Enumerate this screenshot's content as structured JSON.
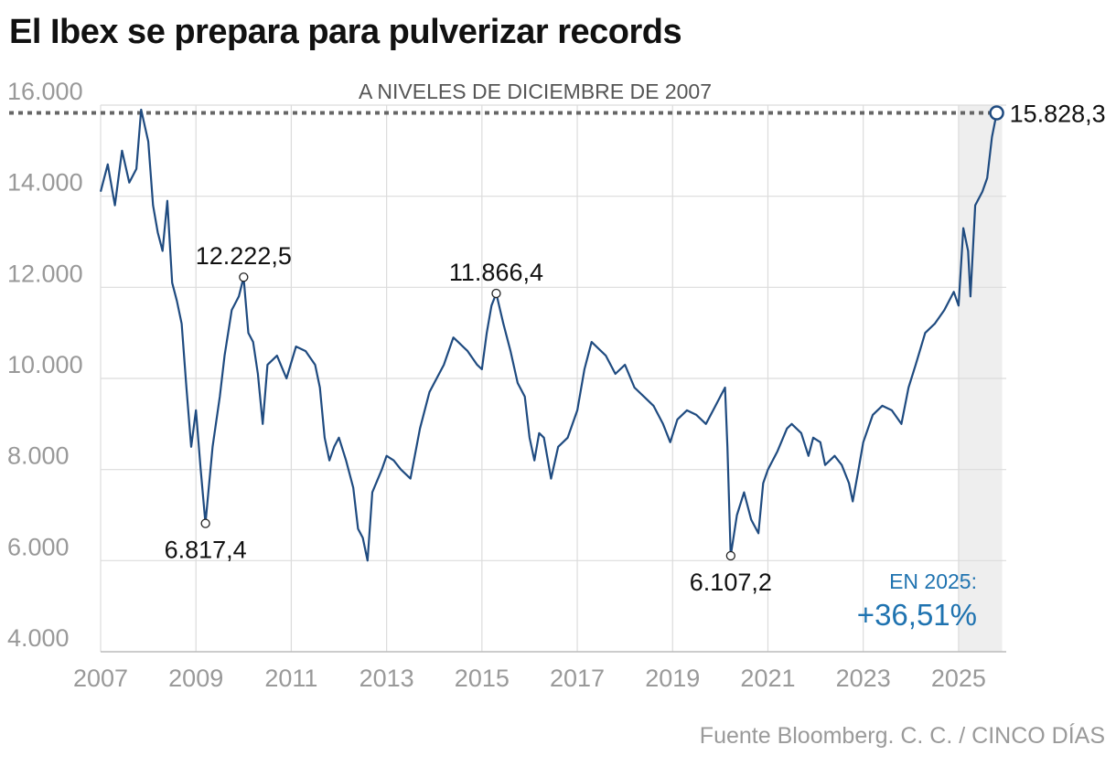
{
  "title": "El Ibex se prepara para pulverizar records",
  "source": "Fuente Bloomberg. C. C. / CINCO DÍAS",
  "colors": {
    "line": "#1f4b80",
    "grid": "#dcdcdc",
    "reference": "#666666",
    "highlight_band": "#eeeeee",
    "accent_blue": "#1f73b0",
    "tick_text": "#999999"
  },
  "chart_data": {
    "type": "line",
    "title": "El Ibex se prepara para pulverizar records",
    "xlabel": "",
    "ylabel": "",
    "xlim": [
      2007.0,
      2026.0
    ],
    "ylim": [
      4000,
      16000
    ],
    "x_ticks": [
      "2007",
      "2009",
      "2011",
      "2013",
      "2015",
      "2017",
      "2019",
      "2021",
      "2023",
      "2025"
    ],
    "y_ticks": [
      "4.000",
      "6.000",
      "8.000",
      "10.000",
      "12.000",
      "14.000",
      "16.000"
    ],
    "grid": true,
    "reference_line": {
      "value": 15828.3,
      "style": "dotted",
      "label": "A NIVELES DE DICIEMBRE DE 2007"
    },
    "highlight_period": {
      "from": 2025.0,
      "to": 2025.8,
      "label": "EN 2025:",
      "value_label": "+36,51%"
    },
    "series": [
      {
        "points": [
          [
            2007.0,
            14100
          ],
          [
            2007.15,
            14700
          ],
          [
            2007.3,
            13800
          ],
          [
            2007.45,
            15000
          ],
          [
            2007.6,
            14300
          ],
          [
            2007.75,
            14600
          ],
          [
            2007.85,
            15900
          ],
          [
            2008.0,
            15200
          ],
          [
            2008.1,
            13800
          ],
          [
            2008.2,
            13200
          ],
          [
            2008.3,
            12800
          ],
          [
            2008.4,
            13900
          ],
          [
            2008.5,
            12100
          ],
          [
            2008.6,
            11700
          ],
          [
            2008.7,
            11200
          ],
          [
            2008.8,
            9800
          ],
          [
            2008.9,
            8500
          ],
          [
            2009.0,
            9300
          ],
          [
            2009.1,
            8000
          ],
          [
            2009.2,
            6817
          ],
          [
            2009.35,
            8500
          ],
          [
            2009.5,
            9600
          ],
          [
            2009.6,
            10500
          ],
          [
            2009.75,
            11500
          ],
          [
            2009.9,
            11800
          ],
          [
            2010.0,
            12222
          ],
          [
            2010.1,
            11000
          ],
          [
            2010.2,
            10800
          ],
          [
            2010.3,
            10100
          ],
          [
            2010.4,
            9000
          ],
          [
            2010.5,
            10300
          ],
          [
            2010.7,
            10500
          ],
          [
            2010.9,
            10000
          ],
          [
            2011.1,
            10700
          ],
          [
            2011.3,
            10600
          ],
          [
            2011.5,
            10300
          ],
          [
            2011.6,
            9800
          ],
          [
            2011.7,
            8700
          ],
          [
            2011.8,
            8200
          ],
          [
            2011.9,
            8500
          ],
          [
            2012.0,
            8700
          ],
          [
            2012.15,
            8200
          ],
          [
            2012.3,
            7600
          ],
          [
            2012.4,
            6700
          ],
          [
            2012.5,
            6500
          ],
          [
            2012.6,
            6000
          ],
          [
            2012.7,
            7500
          ],
          [
            2012.9,
            8000
          ],
          [
            2013.0,
            8300
          ],
          [
            2013.15,
            8200
          ],
          [
            2013.3,
            8000
          ],
          [
            2013.5,
            7800
          ],
          [
            2013.7,
            8900
          ],
          [
            2013.9,
            9700
          ],
          [
            2014.0,
            9900
          ],
          [
            2014.2,
            10300
          ],
          [
            2014.4,
            10900
          ],
          [
            2014.5,
            10800
          ],
          [
            2014.7,
            10600
          ],
          [
            2014.9,
            10300
          ],
          [
            2015.0,
            10200
          ],
          [
            2015.1,
            11000
          ],
          [
            2015.2,
            11600
          ],
          [
            2015.3,
            11866
          ],
          [
            2015.45,
            11200
          ],
          [
            2015.6,
            10600
          ],
          [
            2015.75,
            9900
          ],
          [
            2015.9,
            9600
          ],
          [
            2016.0,
            8700
          ],
          [
            2016.1,
            8200
          ],
          [
            2016.2,
            8800
          ],
          [
            2016.3,
            8700
          ],
          [
            2016.45,
            7800
          ],
          [
            2016.6,
            8500
          ],
          [
            2016.8,
            8700
          ],
          [
            2017.0,
            9300
          ],
          [
            2017.15,
            10200
          ],
          [
            2017.3,
            10800
          ],
          [
            2017.4,
            10700
          ],
          [
            2017.6,
            10500
          ],
          [
            2017.8,
            10100
          ],
          [
            2018.0,
            10300
          ],
          [
            2018.2,
            9800
          ],
          [
            2018.4,
            9600
          ],
          [
            2018.6,
            9400
          ],
          [
            2018.8,
            9000
          ],
          [
            2018.95,
            8600
          ],
          [
            2019.1,
            9100
          ],
          [
            2019.3,
            9300
          ],
          [
            2019.5,
            9200
          ],
          [
            2019.7,
            9000
          ],
          [
            2019.9,
            9400
          ],
          [
            2020.0,
            9600
          ],
          [
            2020.1,
            9800
          ],
          [
            2020.15,
            8500
          ],
          [
            2020.22,
            6107
          ],
          [
            2020.35,
            7000
          ],
          [
            2020.5,
            7500
          ],
          [
            2020.65,
            6900
          ],
          [
            2020.8,
            6600
          ],
          [
            2020.9,
            7700
          ],
          [
            2021.0,
            8000
          ],
          [
            2021.2,
            8400
          ],
          [
            2021.4,
            8900
          ],
          [
            2021.5,
            9000
          ],
          [
            2021.7,
            8800
          ],
          [
            2021.85,
            8300
          ],
          [
            2021.95,
            8700
          ],
          [
            2022.1,
            8600
          ],
          [
            2022.2,
            8100
          ],
          [
            2022.4,
            8300
          ],
          [
            2022.55,
            8100
          ],
          [
            2022.7,
            7700
          ],
          [
            2022.78,
            7300
          ],
          [
            2022.9,
            8000
          ],
          [
            2023.0,
            8600
          ],
          [
            2023.2,
            9200
          ],
          [
            2023.4,
            9400
          ],
          [
            2023.6,
            9300
          ],
          [
            2023.8,
            9000
          ],
          [
            2023.95,
            9800
          ],
          [
            2024.1,
            10300
          ],
          [
            2024.3,
            11000
          ],
          [
            2024.5,
            11200
          ],
          [
            2024.7,
            11500
          ],
          [
            2024.9,
            11900
          ],
          [
            2025.0,
            11600
          ],
          [
            2025.1,
            13300
          ],
          [
            2025.2,
            12800
          ],
          [
            2025.25,
            11800
          ],
          [
            2025.35,
            13800
          ],
          [
            2025.5,
            14100
          ],
          [
            2025.6,
            14400
          ],
          [
            2025.7,
            15300
          ],
          [
            2025.8,
            15828
          ]
        ]
      }
    ],
    "annotations": [
      {
        "x": 2009.2,
        "y": 6817.4,
        "label": "6.817,4",
        "position": "below"
      },
      {
        "x": 2010.0,
        "y": 12222.5,
        "label": "12.222,5",
        "position": "above"
      },
      {
        "x": 2015.3,
        "y": 11866.4,
        "label": "11.866,4",
        "position": "above"
      },
      {
        "x": 2020.22,
        "y": 6107.2,
        "label": "6.107,2",
        "position": "below"
      },
      {
        "x": 2025.8,
        "y": 15828.3,
        "label": "15.828,3",
        "position": "right"
      }
    ]
  }
}
